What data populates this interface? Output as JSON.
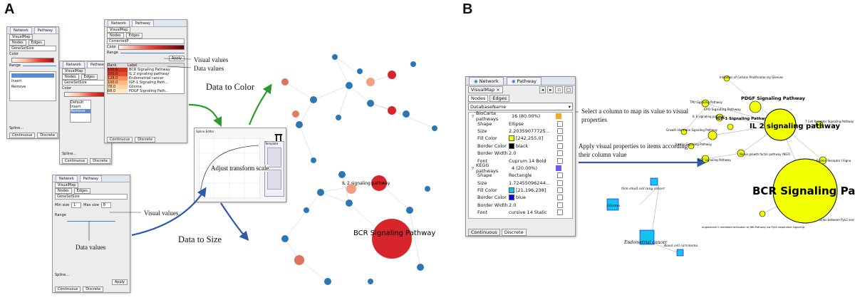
{
  "panels": {
    "a": "A",
    "b": "B"
  },
  "common": {
    "tab_network": "Network",
    "tab_pathway": "Pathway",
    "tab_visualmap": "VisualMap",
    "tab_nodes": "Nodes",
    "tab_edges": "Edges",
    "tab_continuous": "Continuous",
    "tab_discrete": "Discrete",
    "apply": "Apply",
    "column_gene_set": "GeneSetSize",
    "column_corrected": "CorrectedP",
    "label_color": "Color",
    "label_range": "Range",
    "spline": "Spline..."
  },
  "window_color": {
    "rank_header": "Rank",
    "label_header": "Label",
    "rows": [
      {
        "rank": "100.0",
        "label": "BCR Signaling Pathway",
        "color": "#d7301f"
      },
      {
        "rank": "100.0",
        "label": "IL 2 signaling pathway",
        "color": "#e34a33"
      },
      {
        "rank": "128.0",
        "label": "Endometrial cancer",
        "color": "#fc8d59"
      },
      {
        "rank": "100.0",
        "label": "IGF-1 Signaling Path...",
        "color": "#fdbb84"
      },
      {
        "rank": "78.0",
        "label": "Glioma",
        "color": "#fdd49e"
      },
      {
        "rank": "68.0",
        "label": "PDGF Signaling Path...",
        "color": "#fee8c8"
      }
    ]
  },
  "window_size": {
    "max_label": "Max size",
    "min_label": "Min size",
    "min_value": "1",
    "max_value": "8"
  },
  "window_discrete": {
    "options": [
      "Default",
      "Insert",
      "Remove"
    ]
  },
  "spline_panel": {
    "title": "Spline Editor",
    "symbol": "π",
    "subtitle": "Template"
  },
  "annotations": {
    "visual_values_1": "Visual values",
    "data_values_1": "Data values",
    "data_to_color": "Data to Color",
    "adjust": "Adjust transform scale",
    "data_to_size": "Data to Size",
    "visual_values_2": "Visual values",
    "data_values_2": "Data values",
    "select_column": "Select a column to map its value to visual properties",
    "apply_props": "Apply visual properties to items according to their column value"
  },
  "network_a": {
    "big_label": "BCR Signaling Pathway",
    "medium_label": "IL 2 signaling pathway"
  },
  "window_b": {
    "column": "DatabaseName",
    "groups": [
      {
        "name": "BioCarta pathways",
        "count": "16 (80.00%)",
        "swatch": "#f5a623",
        "props": [
          {
            "k": "Shape",
            "v": "Ellipse"
          },
          {
            "k": "Size",
            "v": "2.20359077725..."
          },
          {
            "k": "Fill Color",
            "v": "[242,255,0]",
            "sw": "#f2ff00"
          },
          {
            "k": "Border Color",
            "v": "black",
            "sw": "#000000"
          },
          {
            "k": "Border Width",
            "v": "2.0"
          },
          {
            "k": "Font",
            "v": "Cuprum 14 Bold"
          }
        ]
      },
      {
        "name": "KEGG pathways",
        "count": "4 (20.00%)",
        "swatch": "#6a5cf5",
        "props": [
          {
            "k": "Shape",
            "v": "Rectangle"
          },
          {
            "k": "Size",
            "v": "1.72455096244..."
          },
          {
            "k": "Fill Color",
            "v": "[21,196,238]",
            "sw": "#15c4ee"
          },
          {
            "k": "Border Color",
            "v": "blue",
            "sw": "#0000ff"
          },
          {
            "k": "Border Width",
            "v": "2.0"
          },
          {
            "k": "Font",
            "v": "cursive 14 Stalic"
          }
        ]
      }
    ]
  },
  "network_b": {
    "big_label": "BCR Signaling Pat",
    "il2": "IL 2 signaling pathway",
    "pdgf": "PDGF Signaling Pathway",
    "igf": "IGF-1 Signaling Pathway",
    "epo": "EPO Signaling Pathway",
    "tpo": "TPO Signaling Pathway",
    "il6": "IL 6 signaling pathway",
    "ghr": "Growth Hormone Signaling Pathway",
    "insulin": "Insulin Signaling Pathway",
    "egf": "EGF Signaling Pathway",
    "ngf": "Nerve growth factor pathway (NGF)",
    "tcell": "T Cell Receptor Signaling Pathway",
    "fc": "Fc Epsilon Receptor I Signa",
    "inhib": "Inhibition of Cellular Proliferation by Gleevec",
    "links": "Links between Pyk2 and Map Kin",
    "angio": "Angiotensin II mediated activation of JNK Pathway via Pyk2 dependent signaling",
    "nsclc": "Non-small cell lung cancer",
    "glioma": "Glioma",
    "endo": "Endometrial cancer",
    "basal": "Basal cell carcinoma"
  },
  "colors": {
    "accent_green": "#2a9a2a",
    "accent_blue": "#2f5aa8",
    "node_blue": "#2a77b5",
    "node_red": "#d7262b",
    "yellow": "#f2ff00",
    "cyan": "#15c4ee"
  }
}
